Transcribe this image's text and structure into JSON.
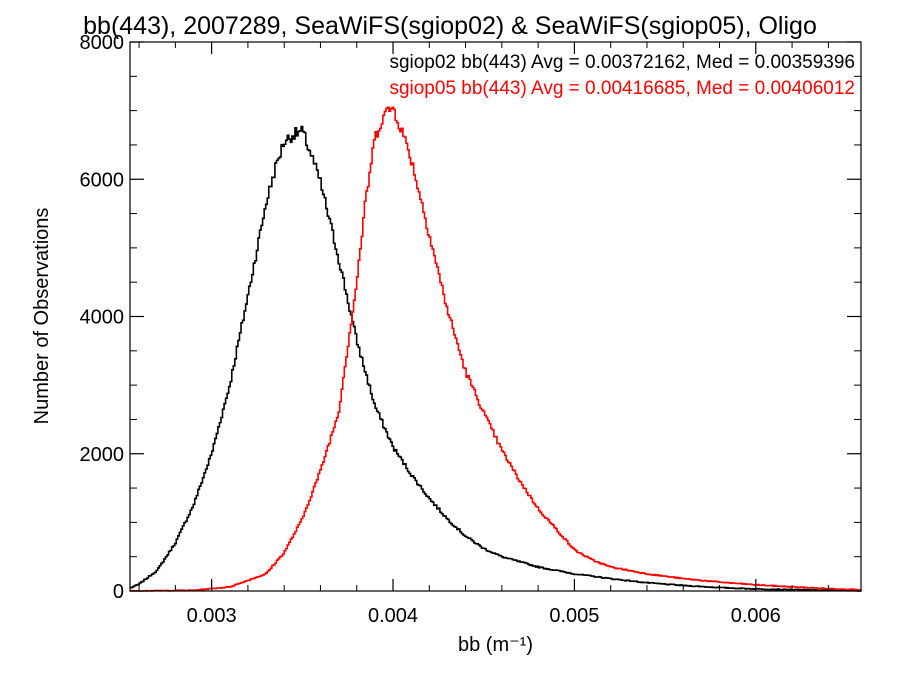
{
  "chart_data": {
    "type": "line",
    "title": "bb(443), 2007289, SeaWiFS(sgiop02) & SeaWiFS(sgiop05), Oligo",
    "xlabel": "bb (m⁻¹)",
    "ylabel": "Number of Observations",
    "xlim": [
      0.00255,
      0.00658
    ],
    "ylim": [
      0,
      8000
    ],
    "x_ticks": [
      0.003,
      0.004,
      0.005,
      0.006
    ],
    "x_tick_labels": [
      "0.003",
      "0.004",
      "0.005",
      "0.006"
    ],
    "y_ticks": [
      0,
      2000,
      4000,
      6000,
      8000
    ],
    "y_tick_labels": [
      "0",
      "2000",
      "4000",
      "6000",
      "8000"
    ],
    "grid": false,
    "step": true,
    "annotations": [
      {
        "text": "sgiop02 bb(443) Avg = 0.00372162, Med = 0.00359396",
        "color": "#000000"
      },
      {
        "text": "sgiop05 bb(443) Avg = 0.00416685, Med = 0.00406012",
        "color": "#ff0000"
      }
    ],
    "series": [
      {
        "color": "#000000",
        "x": [
          0.00255,
          0.0026,
          0.0027,
          0.0028,
          0.0029,
          0.003,
          0.0031,
          0.0032,
          0.0033,
          0.00335,
          0.0034,
          0.00345,
          0.0035,
          0.00355,
          0.0036,
          0.0037,
          0.0038,
          0.0039,
          0.004,
          0.0041,
          0.0042,
          0.0043,
          0.0044,
          0.0045,
          0.0046,
          0.0048,
          0.005,
          0.0052,
          0.0054,
          0.0056,
          0.0058,
          0.006,
          0.0062,
          0.0064,
          0.00658
        ],
        "y": [
          40,
          100,
          300,
          700,
          1250,
          2000,
          3000,
          4300,
          5650,
          6150,
          6550,
          6650,
          6700,
          6350,
          5950,
          4850,
          3650,
          2700,
          2100,
          1700,
          1350,
          1050,
          800,
          620,
          500,
          350,
          250,
          180,
          120,
          80,
          50,
          30,
          20,
          10,
          5
        ]
      },
      {
        "color": "#ff0000",
        "x": [
          0.00255,
          0.0029,
          0.0031,
          0.0033,
          0.0034,
          0.0035,
          0.0036,
          0.0037,
          0.0038,
          0.00385,
          0.0039,
          0.00395,
          0.004,
          0.00405,
          0.0041,
          0.0042,
          0.0043,
          0.0044,
          0.0045,
          0.0046,
          0.0047,
          0.0048,
          0.0049,
          0.005,
          0.0051,
          0.0052,
          0.0054,
          0.0056,
          0.0058,
          0.006,
          0.0062,
          0.0064,
          0.00658
        ],
        "y": [
          0,
          10,
          60,
          250,
          560,
          1050,
          1750,
          2600,
          4500,
          5700,
          6600,
          6950,
          7050,
          6700,
          6300,
          5200,
          4100,
          3200,
          2600,
          2050,
          1600,
          1200,
          900,
          600,
          450,
          350,
          250,
          180,
          130,
          90,
          60,
          35,
          20
        ]
      }
    ]
  }
}
